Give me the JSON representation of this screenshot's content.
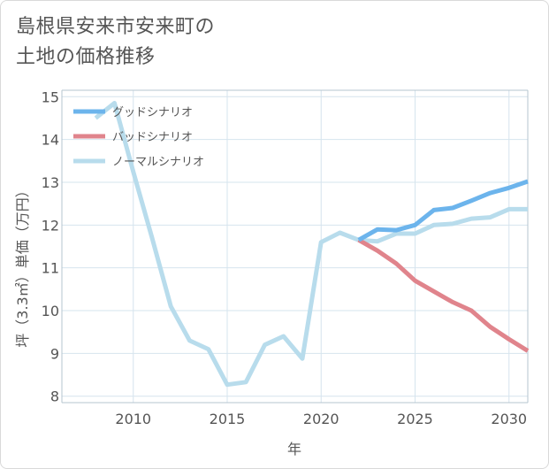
{
  "title_line1": "島根県安来市安来町の",
  "title_line2": "土地の価格推移",
  "chart_data": {
    "type": "line",
    "xlabel": "年",
    "ylabel": "坪（3.3㎡）単価（万円）",
    "xlim": [
      2006.2,
      2031
    ],
    "ylim": [
      7.85,
      15.15
    ],
    "xticks": [
      2010,
      2015,
      2020,
      2025,
      2030
    ],
    "yticks": [
      8,
      9,
      10,
      11,
      12,
      13,
      14,
      15
    ],
    "grid": true,
    "legend_position": "top-left",
    "series": [
      {
        "name": "グッドシナリオ",
        "color": "#6cb4ec",
        "x": [
          2022,
          2023,
          2024,
          2025,
          2026,
          2027,
          2028,
          2029,
          2030,
          2031
        ],
        "y": [
          11.65,
          11.9,
          11.88,
          12.0,
          12.35,
          12.4,
          12.57,
          12.75,
          12.87,
          13.02
        ]
      },
      {
        "name": "バッドシナリオ",
        "color": "#e0848c",
        "x": [
          2022,
          2023,
          2024,
          2025,
          2026,
          2027,
          2028,
          2029,
          2030,
          2031
        ],
        "y": [
          11.65,
          11.4,
          11.1,
          10.7,
          10.45,
          10.2,
          10.0,
          9.62,
          9.33,
          9.06
        ]
      },
      {
        "name": "ノーマルシナリオ",
        "color": "#b8dcec",
        "x": [
          2008,
          2009,
          2010,
          2011,
          2012,
          2013,
          2014,
          2015,
          2016,
          2017,
          2018,
          2019,
          2020,
          2021,
          2022,
          2023,
          2024,
          2025,
          2026,
          2027,
          2028,
          2029,
          2030,
          2031
        ],
        "y": [
          14.5,
          14.85,
          13.25,
          11.7,
          10.1,
          9.3,
          9.1,
          8.27,
          8.33,
          9.2,
          9.4,
          8.88,
          11.6,
          11.82,
          11.65,
          11.62,
          11.8,
          11.8,
          12.0,
          12.03,
          12.15,
          12.18,
          12.37,
          12.37
        ]
      }
    ]
  }
}
